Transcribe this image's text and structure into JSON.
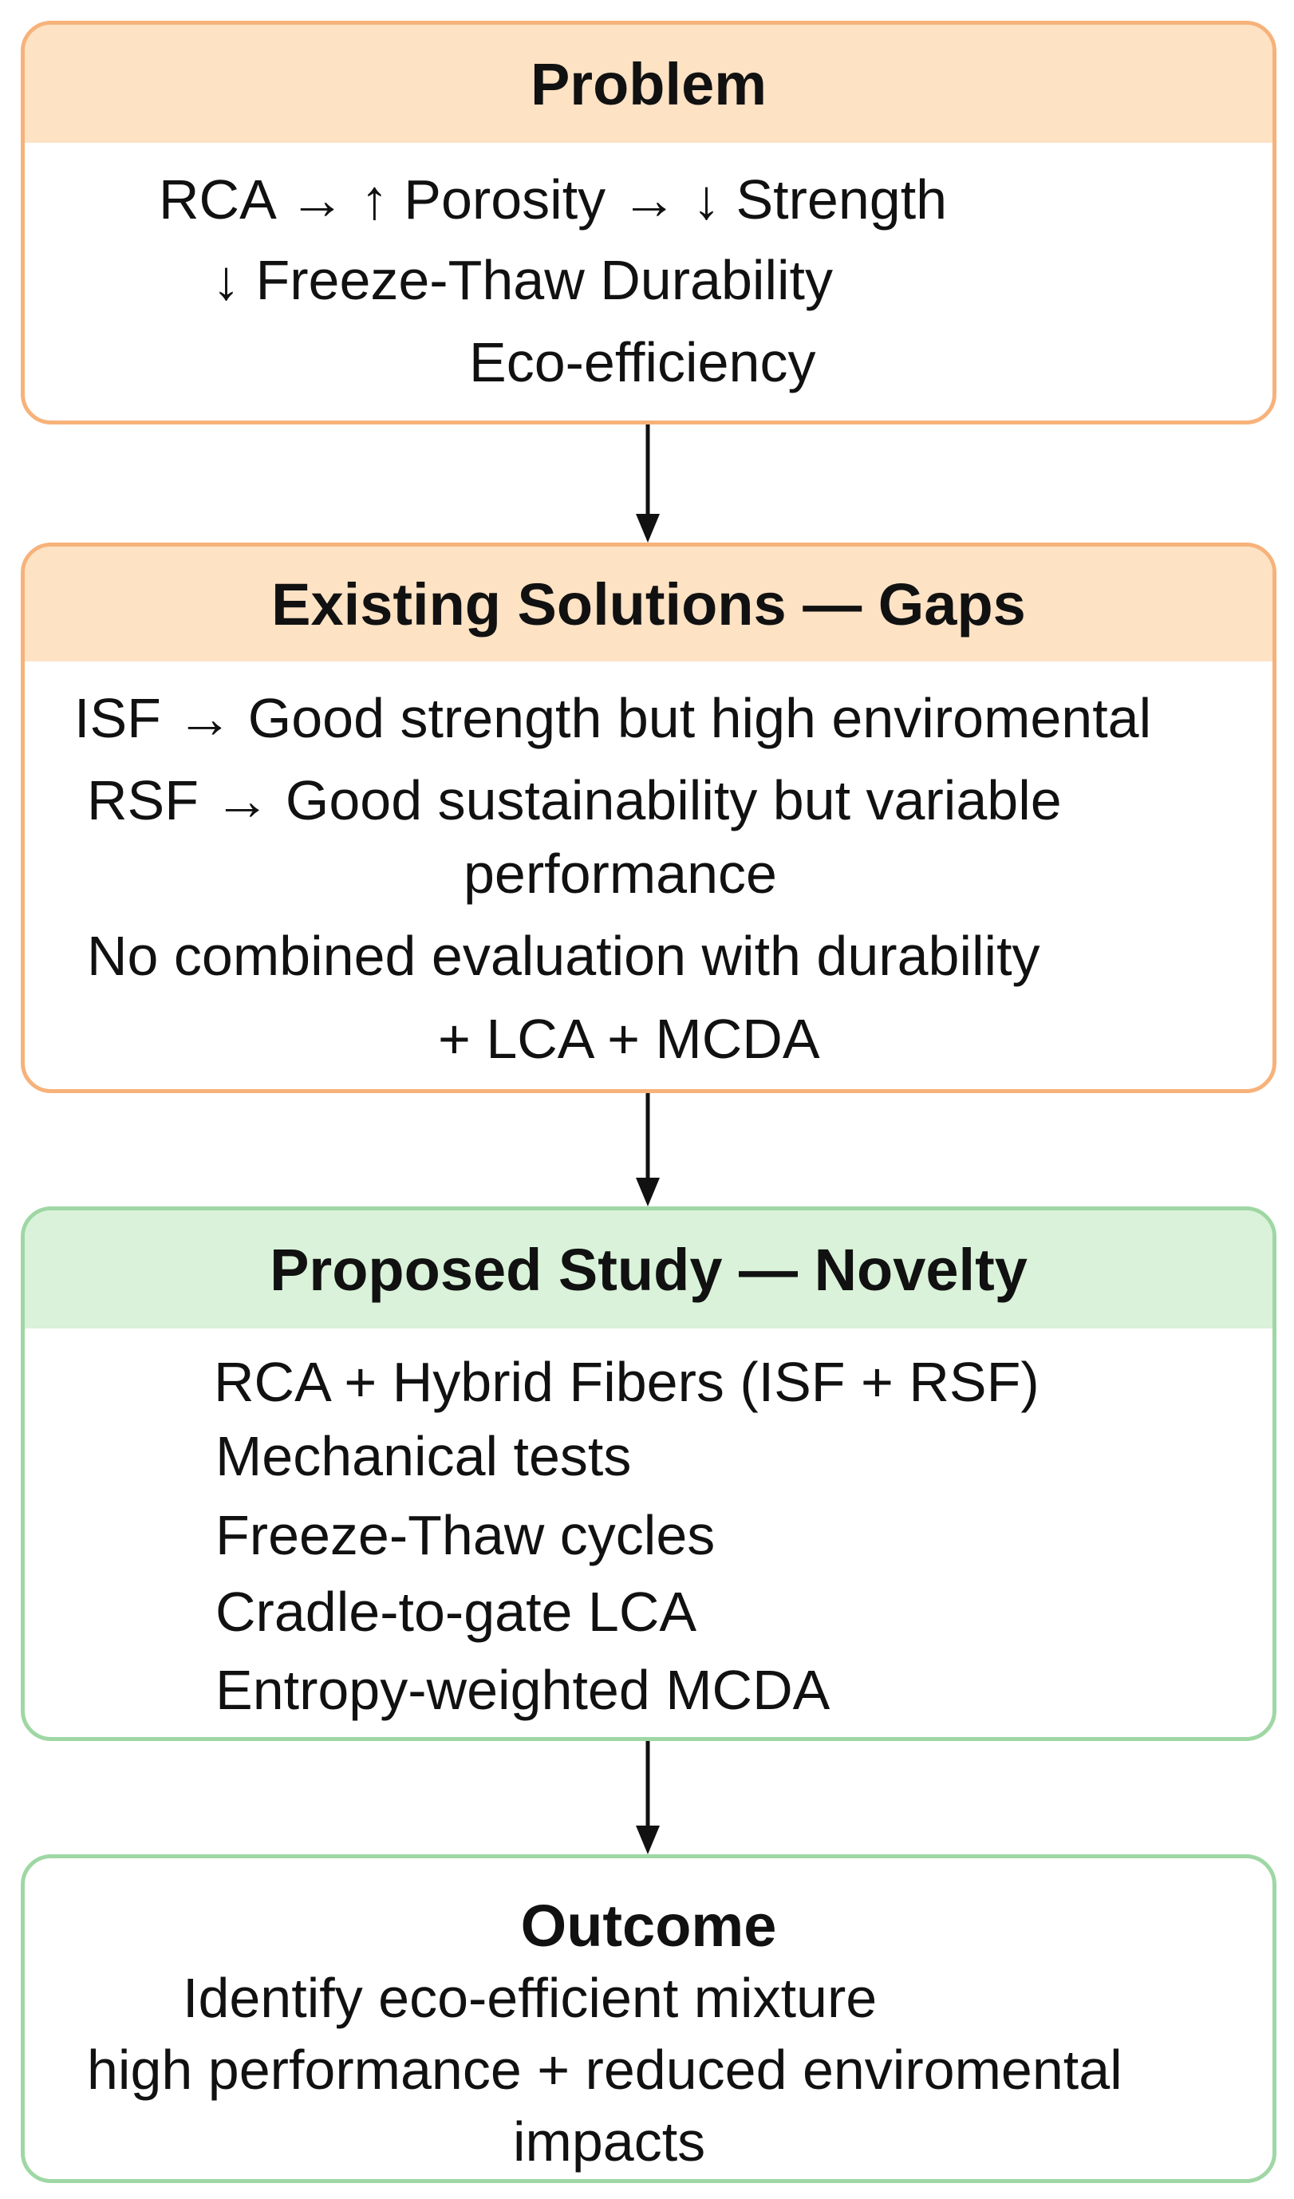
{
  "problem": {
    "title": "Problem",
    "lines": [
      "RCA → ↑ Porosity → ↓ Strength",
      "↓ Freeze-Thaw Durability",
      "Eco-efficiency"
    ]
  },
  "existing_solutions": {
    "title": "Existing Solutions — Gaps",
    "lines": [
      "ISF → Good strength but high enviromental",
      "RSF → Good sustainability but variable",
      "performance",
      "No combined evaluation with durability",
      "+ LCA + MCDA"
    ]
  },
  "proposed_study": {
    "title": "Proposed Study — Novelty",
    "lines": [
      "RCA + Hybrid Fibers (ISF + RSF)",
      "Mechanical tests",
      "Freeze-Thaw cycles",
      "Cradle-to-gate LCA",
      "Entropy-weighted MCDA"
    ]
  },
  "outcome": {
    "title": "Outcome",
    "lines": [
      "Identify eco-efficient mixture",
      "high performance + reduced enviromental",
      "impacts"
    ]
  },
  "colors": {
    "orange_border": "#f7b27a",
    "orange_header": "#fde2c4",
    "green_border": "#9fd7a4",
    "green_header": "#d9f2d9",
    "arrow": "#111111"
  }
}
